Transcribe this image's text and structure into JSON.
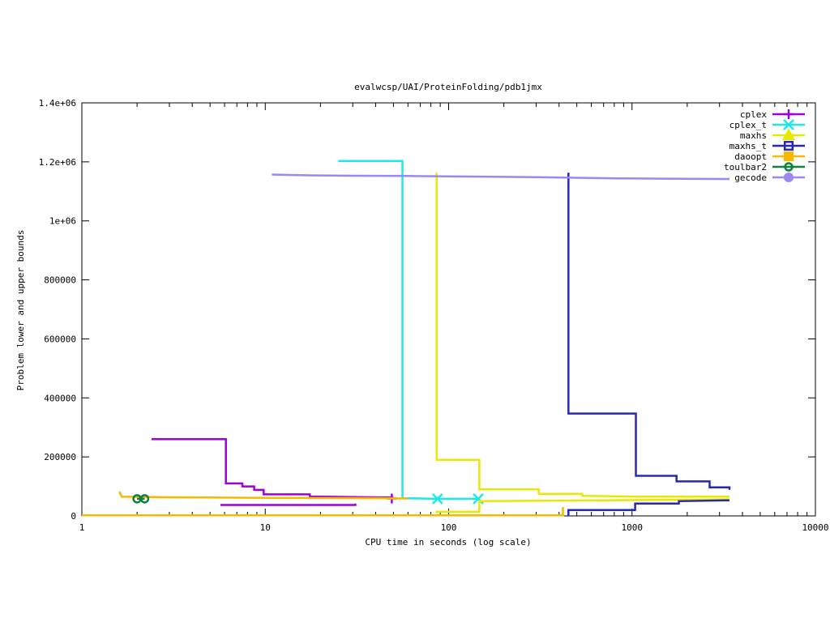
{
  "chart_data": {
    "type": "line",
    "title": "evalwcsp/UAI/ProteinFolding/pdb1jmx",
    "xlabel": "CPU time in seconds (log scale)",
    "ylabel": "Problem lower and upper bounds",
    "x_scale": "log",
    "xlim": [
      1,
      10000
    ],
    "ylim": [
      0,
      1400000
    ],
    "grid": false,
    "legend_position": "top-right",
    "x_ticks": [
      {
        "value": 1,
        "label": "1"
      },
      {
        "value": 10,
        "label": "10"
      },
      {
        "value": 100,
        "label": "100"
      },
      {
        "value": 1000,
        "label": "1000"
      },
      {
        "value": 10000,
        "label": "10000"
      }
    ],
    "y_ticks": [
      {
        "value": 0,
        "label": "0"
      },
      {
        "value": 200000,
        "label": "200000"
      },
      {
        "value": 400000,
        "label": "400000"
      },
      {
        "value": 600000,
        "label": "600000"
      },
      {
        "value": 800000,
        "label": "800000"
      },
      {
        "value": 1000000,
        "label": "1e+06"
      },
      {
        "value": 1200000,
        "label": "1.2e+06"
      },
      {
        "value": 1400000,
        "label": "1.4e+06"
      }
    ],
    "series": [
      {
        "name": "cplex",
        "color": "#a000d8",
        "marker": "plus",
        "paths": [
          [
            [
              2.4,
              260000
            ],
            [
              6.1,
              260000
            ],
            [
              6.1,
              110000
            ],
            [
              7.5,
              110000
            ],
            [
              7.5,
              100000
            ],
            [
              8.7,
              100000
            ],
            [
              8.7,
              88000
            ],
            [
              9.8,
              88000
            ],
            [
              9.8,
              73000
            ],
            [
              17.5,
              73000
            ],
            [
              17.5,
              66000
            ],
            [
              50,
              62000
            ]
          ],
          [
            [
              5.7,
              37000
            ],
            [
              31,
              37000
            ],
            [
              31,
              42000
            ]
          ]
        ],
        "markers": [
          [
            49,
            59000
          ]
        ]
      },
      {
        "name": "cplex_t",
        "color": "#1ee8e8",
        "marker": "x",
        "paths": [
          [
            [
              25,
              1203000
            ],
            [
              56,
              1203000
            ],
            [
              56,
              60000
            ],
            [
              87,
              58000
            ],
            [
              145,
              58000
            ]
          ]
        ],
        "markers": [
          [
            87,
            58000
          ],
          [
            145,
            58000
          ]
        ]
      },
      {
        "name": "maxhs",
        "color": "#e8e800",
        "marker": "triangle",
        "paths": [
          [
            [
              86,
              1163000
            ],
            [
              86,
              190000
            ],
            [
              147,
              190000
            ],
            [
              147,
              90000
            ],
            [
              310,
              90000
            ],
            [
              310,
              75000
            ],
            [
              535,
              75000
            ],
            [
              535,
              68000
            ],
            [
              1100,
              65000
            ],
            [
              3400,
              65000
            ]
          ],
          [
            [
              86,
              9000
            ],
            [
              86,
              14000
            ],
            [
              147,
              14000
            ],
            [
              147,
              50000
            ],
            [
              3400,
              56000
            ]
          ]
        ],
        "markers": []
      },
      {
        "name": "maxhs_t",
        "color": "#2828b8",
        "marker": "square",
        "paths": [
          [
            [
              450,
              1163000
            ],
            [
              450,
              347000
            ],
            [
              1050,
              347000
            ],
            [
              1050,
              136000
            ],
            [
              1750,
              136000
            ],
            [
              1750,
              117000
            ],
            [
              2650,
              117000
            ],
            [
              2650,
              97000
            ],
            [
              3400,
              97000
            ],
            [
              3400,
              88000
            ]
          ],
          [
            [
              450,
              0
            ],
            [
              450,
              20000
            ],
            [
              1040,
              20000
            ],
            [
              1040,
              42000
            ],
            [
              1800,
              42000
            ],
            [
              1800,
              50000
            ],
            [
              3400,
              53000
            ]
          ]
        ],
        "markers": []
      },
      {
        "name": "daoopt",
        "color": "#f8b800",
        "marker": "square-filled",
        "paths": [
          [
            [
              1.6,
              82000
            ],
            [
              1.65,
              65000
            ],
            [
              3,
              63000
            ],
            [
              10,
              61000
            ],
            [
              40,
              60000
            ],
            [
              60,
              59000
            ]
          ],
          [
            [
              1,
              2000
            ],
            [
              420,
              2000
            ],
            [
              420,
              30000
            ]
          ]
        ],
        "markers": []
      },
      {
        "name": "toulbar2",
        "color": "#108040",
        "marker": "circle",
        "paths": [
          [
            [
              2.0,
              58000
            ],
            [
              2.2,
              58000
            ]
          ]
        ],
        "markers": [
          [
            2.0,
            58000
          ],
          [
            2.2,
            58000
          ]
        ]
      },
      {
        "name": "gecode",
        "color": "#9c88f0",
        "marker": "circle-filled",
        "paths": [
          [
            [
              11,
              1160000
            ],
            [
              11,
              1157000
            ],
            [
              15,
              1155000
            ],
            [
              30,
              1153000
            ],
            [
              60,
              1152000
            ],
            [
              150,
              1150000
            ],
            [
              300,
              1148000
            ],
            [
              500,
              1146000
            ],
            [
              900,
              1144000
            ],
            [
              1500,
              1143000
            ],
            [
              3400,
              1142000
            ]
          ]
        ],
        "markers": []
      }
    ]
  }
}
